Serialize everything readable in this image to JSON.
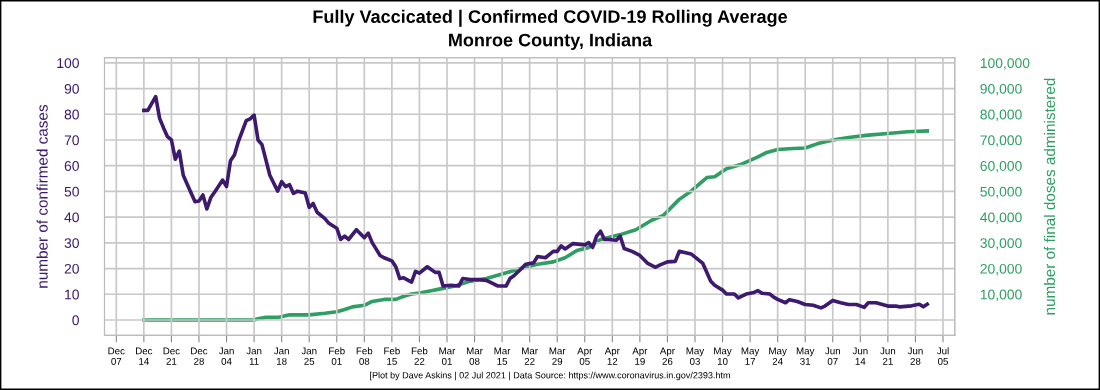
{
  "chart_data": {
    "type": "line",
    "title": "Fully Vaccicated | Confirmed COVID-19 Rolling Average",
    "subtitle": "Monroe County, Indiana",
    "ylabel": "number of confirmed cases",
    "y2label": "number of final doses administered",
    "annotations": [
      "[Plot by Dave Askins | 02 Jul 2021 | Data Source: https://www.coronavirus.in.gov/2393.htm"
    ],
    "grid": true,
    "legend": false,
    "xlim": [
      "2020-12-04",
      "2021-07-08"
    ],
    "xticks": [
      {
        "value": "2020-12-07",
        "label": "Dec\n07"
      },
      {
        "value": "2020-12-14",
        "label": "Dec\n14"
      },
      {
        "value": "2020-12-21",
        "label": "Dec\n21"
      },
      {
        "value": "2020-12-28",
        "label": "Dec\n28"
      },
      {
        "value": "2021-01-04",
        "label": "Jan\n04"
      },
      {
        "value": "2021-01-11",
        "label": "Jan\n11"
      },
      {
        "value": "2021-01-18",
        "label": "Jan\n18"
      },
      {
        "value": "2021-01-25",
        "label": "Jan\n25"
      },
      {
        "value": "2021-02-01",
        "label": "Feb\n01"
      },
      {
        "value": "2021-02-08",
        "label": "Feb\n08"
      },
      {
        "value": "2021-02-15",
        "label": "Feb\n15"
      },
      {
        "value": "2021-02-22",
        "label": "Feb\n22"
      },
      {
        "value": "2021-03-01",
        "label": "Mar\n01"
      },
      {
        "value": "2021-03-08",
        "label": "Mar\n08"
      },
      {
        "value": "2021-03-15",
        "label": "Mar\n15"
      },
      {
        "value": "2021-03-22",
        "label": "Mar\n22"
      },
      {
        "value": "2021-03-29",
        "label": "Mar\n29"
      },
      {
        "value": "2021-04-05",
        "label": "Apr\n05"
      },
      {
        "value": "2021-04-12",
        "label": "Apr\n12"
      },
      {
        "value": "2021-04-19",
        "label": "Apr\n19"
      },
      {
        "value": "2021-04-26",
        "label": "Apr\n26"
      },
      {
        "value": "2021-05-03",
        "label": "May\n03"
      },
      {
        "value": "2021-05-10",
        "label": "May\n10"
      },
      {
        "value": "2021-05-17",
        "label": "May\n17"
      },
      {
        "value": "2021-05-24",
        "label": "May\n24"
      },
      {
        "value": "2021-05-31",
        "label": "May\n31"
      },
      {
        "value": "2021-06-07",
        "label": "Jun\n07"
      },
      {
        "value": "2021-06-14",
        "label": "Jun\n14"
      },
      {
        "value": "2021-06-21",
        "label": "Jun\n21"
      },
      {
        "value": "2021-06-28",
        "label": "Jun\n28"
      },
      {
        "value": "2021-07-05",
        "label": "Jul\n05"
      }
    ],
    "ylim": [
      -6,
      102
    ],
    "yticks": [
      0,
      10,
      20,
      30,
      40,
      50,
      60,
      70,
      80,
      90,
      100
    ],
    "y2lim": [
      -6000,
      102000
    ],
    "y2ticks": [
      {
        "value": 10000,
        "label": "10,000"
      },
      {
        "value": 20000,
        "label": "20,000"
      },
      {
        "value": 30000,
        "label": "30,000"
      },
      {
        "value": 40000,
        "label": "40,000"
      },
      {
        "value": 50000,
        "label": "50,000"
      },
      {
        "value": 60000,
        "label": "60,000"
      },
      {
        "value": 70000,
        "label": "70,000"
      },
      {
        "value": 80000,
        "label": "80,000"
      },
      {
        "value": 90000,
        "label": "90,000"
      },
      {
        "value": 100000,
        "label": "100,000"
      }
    ],
    "series": [
      {
        "color": "#3d1a6e",
        "x": [
          "2020-12-14",
          "2020-12-15",
          "2020-12-17",
          "2020-12-18",
          "2020-12-19",
          "2020-12-20",
          "2020-12-21",
          "2020-12-22",
          "2020-12-23",
          "2020-12-24",
          "2020-12-26",
          "2020-12-27",
          "2020-12-28",
          "2020-12-29",
          "2020-12-30",
          "2020-12-31",
          "2021-01-01",
          "2021-01-03",
          "2021-01-04",
          "2021-01-05",
          "2021-01-06",
          "2021-01-07",
          "2021-01-09",
          "2021-01-10",
          "2021-01-11",
          "2021-01-12",
          "2021-01-13",
          "2021-01-15",
          "2021-01-16",
          "2021-01-17",
          "2021-01-18",
          "2021-01-19",
          "2021-01-20",
          "2021-01-21",
          "2021-01-22",
          "2021-01-24",
          "2021-01-25",
          "2021-01-26",
          "2021-01-27",
          "2021-01-29",
          "2021-01-30",
          "2021-02-01",
          "2021-02-02",
          "2021-02-03",
          "2021-02-04",
          "2021-02-06",
          "2021-02-08",
          "2021-02-09",
          "2021-02-10",
          "2021-02-12",
          "2021-02-13",
          "2021-02-15",
          "2021-02-16",
          "2021-02-17",
          "2021-02-18",
          "2021-02-20",
          "2021-02-21",
          "2021-02-22",
          "2021-02-24",
          "2021-02-26",
          "2021-02-27",
          "2021-02-28",
          "2021-03-02",
          "2021-03-04",
          "2021-03-05",
          "2021-03-07",
          "2021-03-09",
          "2021-03-11",
          "2021-03-13",
          "2021-03-14",
          "2021-03-16",
          "2021-03-17",
          "2021-03-18",
          "2021-03-20",
          "2021-03-21",
          "2021-03-23",
          "2021-03-24",
          "2021-03-26",
          "2021-03-28",
          "2021-03-29",
          "2021-03-30",
          "2021-03-31",
          "2021-04-02",
          "2021-04-05",
          "2021-04-06",
          "2021-04-07",
          "2021-04-08",
          "2021-04-09",
          "2021-04-10",
          "2021-04-11",
          "2021-04-13",
          "2021-04-14",
          "2021-04-15",
          "2021-04-17",
          "2021-04-19",
          "2021-04-21",
          "2021-04-23",
          "2021-04-24",
          "2021-04-26",
          "2021-04-28",
          "2021-04-29",
          "2021-05-02",
          "2021-05-05",
          "2021-05-07",
          "2021-05-08",
          "2021-05-10",
          "2021-05-11",
          "2021-05-13",
          "2021-05-14",
          "2021-05-16",
          "2021-05-18",
          "2021-05-19",
          "2021-05-20",
          "2021-05-22",
          "2021-05-23",
          "2021-05-24",
          "2021-05-26",
          "2021-05-27",
          "2021-05-29",
          "2021-05-31",
          "2021-06-02",
          "2021-06-04",
          "2021-06-05",
          "2021-06-07",
          "2021-06-09",
          "2021-06-11",
          "2021-06-13",
          "2021-06-15",
          "2021-06-16",
          "2021-06-18",
          "2021-06-21",
          "2021-06-23",
          "2021-06-24",
          "2021-06-27",
          "2021-06-29",
          "2021-06-30",
          "2021-07-01"
        ],
        "values": [
          81.5,
          81.5,
          86.9,
          78.4,
          74.7,
          71.3,
          70,
          62.5,
          65.7,
          56.3,
          49.4,
          46,
          46.3,
          48.6,
          43.2,
          47.6,
          49.8,
          54.4,
          51.9,
          61.9,
          64.2,
          69.4,
          77.5,
          78.2,
          79.7,
          70,
          68.2,
          56.3,
          53.2,
          50.1,
          53.8,
          51.9,
          52.6,
          49.2,
          50.1,
          49.4,
          43.8,
          45.3,
          41.9,
          39.4,
          37.6,
          35.7,
          31.3,
          32.6,
          31.3,
          35.1,
          32,
          33.8,
          30.1,
          25.1,
          24.2,
          23,
          20.7,
          16.1,
          16.4,
          14.7,
          18.9,
          18.2,
          20.7,
          18.5,
          18.5,
          13.2,
          13.5,
          13.2,
          16.1,
          15.7,
          15.7,
          15.4,
          13.9,
          13.2,
          13.2,
          16.1,
          17.2,
          20.1,
          21.7,
          22.2,
          24.7,
          24.2,
          26.7,
          26.7,
          28.8,
          27.6,
          29.7,
          29.2,
          30.1,
          28.2,
          32.6,
          34.5,
          31.3,
          31.3,
          31,
          32.6,
          27.8,
          26.7,
          25.1,
          22,
          20.5,
          21.3,
          22.6,
          22.8,
          26.7,
          25.7,
          22,
          15.1,
          13.5,
          11.6,
          10.1,
          10.1,
          8.6,
          10.1,
          10.7,
          11.4,
          10.4,
          10.1,
          8.9,
          8,
          6.7,
          7.9,
          7.2,
          6,
          5.7,
          4.7,
          5.4,
          7.6,
          6.7,
          6,
          6,
          4.9,
          6.7,
          6.7,
          5.4,
          5.4,
          5.1,
          5.5,
          6.1,
          5.1,
          6.1
        ]
      },
      {
        "color": "#2e9e63",
        "axis": "y2",
        "x": [
          "2020-12-14",
          "2021-01-11",
          "2021-01-12",
          "2021-01-14",
          "2021-01-17",
          "2021-01-20",
          "2021-01-25",
          "2021-01-29",
          "2021-02-01",
          "2021-02-03",
          "2021-02-05",
          "2021-02-08",
          "2021-02-10",
          "2021-02-13",
          "2021-02-16",
          "2021-02-18",
          "2021-02-20",
          "2021-02-22",
          "2021-02-25",
          "2021-02-27",
          "2021-03-03",
          "2021-03-07",
          "2021-03-11",
          "2021-03-15",
          "2021-03-20",
          "2021-03-24",
          "2021-03-28",
          "2021-03-31",
          "2021-04-03",
          "2021-04-06",
          "2021-04-09",
          "2021-04-14",
          "2021-04-18",
          "2021-04-22",
          "2021-04-25",
          "2021-04-29",
          "2021-05-02",
          "2021-05-06",
          "2021-05-08",
          "2021-05-11",
          "2021-05-15",
          "2021-05-19",
          "2021-05-21",
          "2021-05-24",
          "2021-05-28",
          "2021-05-31",
          "2021-06-03",
          "2021-06-07",
          "2021-06-11",
          "2021-06-16",
          "2021-06-21",
          "2021-06-26",
          "2021-07-01"
        ],
        "values": [
          0,
          0,
          500,
          1000,
          1000,
          2000,
          2000,
          2600,
          3200,
          4100,
          5100,
          5700,
          7200,
          8000,
          8000,
          9200,
          10100,
          10500,
          11400,
          12000,
          13200,
          15100,
          16100,
          17900,
          20100,
          21700,
          22600,
          24200,
          27000,
          28200,
          31300,
          33200,
          35100,
          38800,
          40700,
          46900,
          50100,
          55400,
          55700,
          58800,
          60700,
          63400,
          65000,
          66300,
          66700,
          66900,
          68500,
          70000,
          71000,
          71900,
          72500,
          73200,
          73500
        ]
      }
    ]
  }
}
